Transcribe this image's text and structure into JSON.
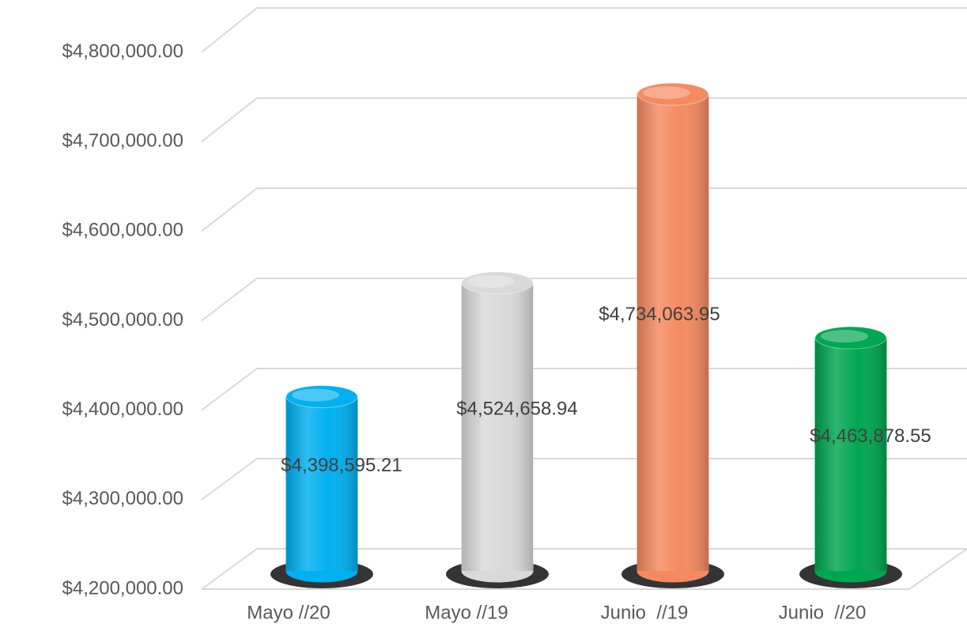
{
  "chart_data": {
    "type": "bar",
    "categories": [
      "Mayo //20",
      "Mayo //19",
      "Junio  //19",
      "Junio  //20"
    ],
    "values": [
      4398595.21,
      4524658.94,
      4734063.95,
      4463878.55
    ],
    "value_labels": [
      "$4,398,595.21",
      "$4,524,658.94",
      "$4,734,063.95",
      "$4,463,878.55"
    ],
    "colors": [
      "#00b0f0",
      "#d9d9d9",
      "#f58a60",
      "#00a651"
    ],
    "ylim": [
      4200000,
      4800000
    ],
    "yticks": [
      {
        "value": 4200000,
        "label": "$4,200,000.00"
      },
      {
        "value": 4300000,
        "label": "$4,300,000.00"
      },
      {
        "value": 4400000,
        "label": "$4,400,000.00"
      },
      {
        "value": 4500000,
        "label": "$4,500,000.00"
      },
      {
        "value": 4600000,
        "label": "$4,600,000.00"
      },
      {
        "value": 4700000,
        "label": "$4,700,000.00"
      },
      {
        "value": 4800000,
        "label": "$4,800,000.00"
      }
    ],
    "grid": true
  }
}
